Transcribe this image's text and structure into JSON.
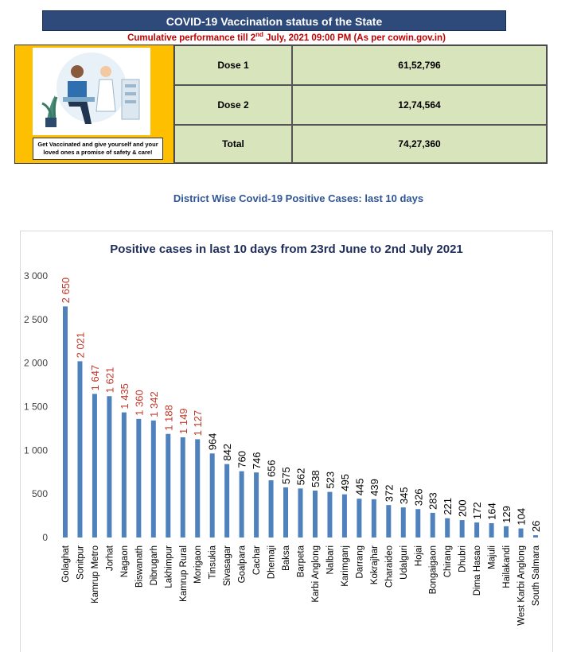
{
  "header": {
    "title": "COVID-19 Vaccination status of the State",
    "subtitle_parts": [
      "Cumulative performance till 2",
      "nd",
      " July, 2021 09:00 PM (As per cowin.gov.in)"
    ]
  },
  "poster": {
    "caption": "Get Vaccinated and give yourself and your loved ones a promise of safety & care!"
  },
  "table": {
    "rows": [
      [
        "Dose 1",
        "61,52,796"
      ],
      [
        "Dose 2",
        "12,74,564"
      ],
      [
        "Total",
        "74,27,360"
      ]
    ]
  },
  "section_title": "District Wise Covid-19 Positive Cases: last 10 days",
  "chart_data": {
    "type": "bar",
    "title": "Positive cases in last 10 days from 23rd June to 2nd July 2021",
    "categories": [
      "Golaghat",
      "Sonitpur",
      "Kamrup Metro",
      "Jorhat",
      "Nagaon",
      "Biswanath",
      "Dibrugarh",
      "Lakhimpur",
      "Kamrup Rural",
      "Morigaon",
      "Tinsukia",
      "Sivasagar",
      "Goalpara",
      "Cachar",
      "Dhemaji",
      "Baksa",
      "Barpeta",
      "Karbi Anglong",
      "Nalbari",
      "Karimganj",
      "Darrang",
      "Kokrajhar",
      "Charaideo",
      "Udalguri",
      "Hojai",
      "Bongaigaon",
      "Chirang",
      "Dhubri",
      "Dima Hasao",
      "Majuli",
      "Hailakandi",
      "West Karbi Anglong",
      "South Salmara"
    ],
    "values": [
      2650,
      2021,
      1647,
      1621,
      1435,
      1360,
      1342,
      1188,
      1149,
      1127,
      964,
      842,
      760,
      746,
      656,
      575,
      562,
      538,
      523,
      495,
      445,
      439,
      372,
      345,
      326,
      283,
      221,
      200,
      172,
      164,
      129,
      104,
      26
    ],
    "value_labels": [
      "2 650",
      "2 021",
      "1 647",
      "1 621",
      "1 435",
      "1 360",
      "1 342",
      "1 188",
      "1 149",
      "1 127",
      "964",
      "842",
      "760",
      "746",
      "656",
      "575",
      "562",
      "538",
      "523",
      "495",
      "445",
      "439",
      "372",
      "345",
      "326",
      "283",
      "221",
      "200",
      "172",
      "164",
      "129",
      "104",
      "26"
    ],
    "color": "#4f81bd",
    "value_label_color": "#000000",
    "value_label_accent_color": "#c0392b",
    "ylim": [
      0,
      3000
    ],
    "yticks": [
      0,
      500,
      {
        "value": 1000,
        "label": "1 000"
      },
      {
        "value": 1500,
        "label": "1 500"
      },
      {
        "value": 2000,
        "label": "2 000"
      },
      {
        "value": 2500,
        "label": "2 500"
      },
      {
        "value": 3000,
        "label": "3 000"
      }
    ],
    "grid": false
  }
}
